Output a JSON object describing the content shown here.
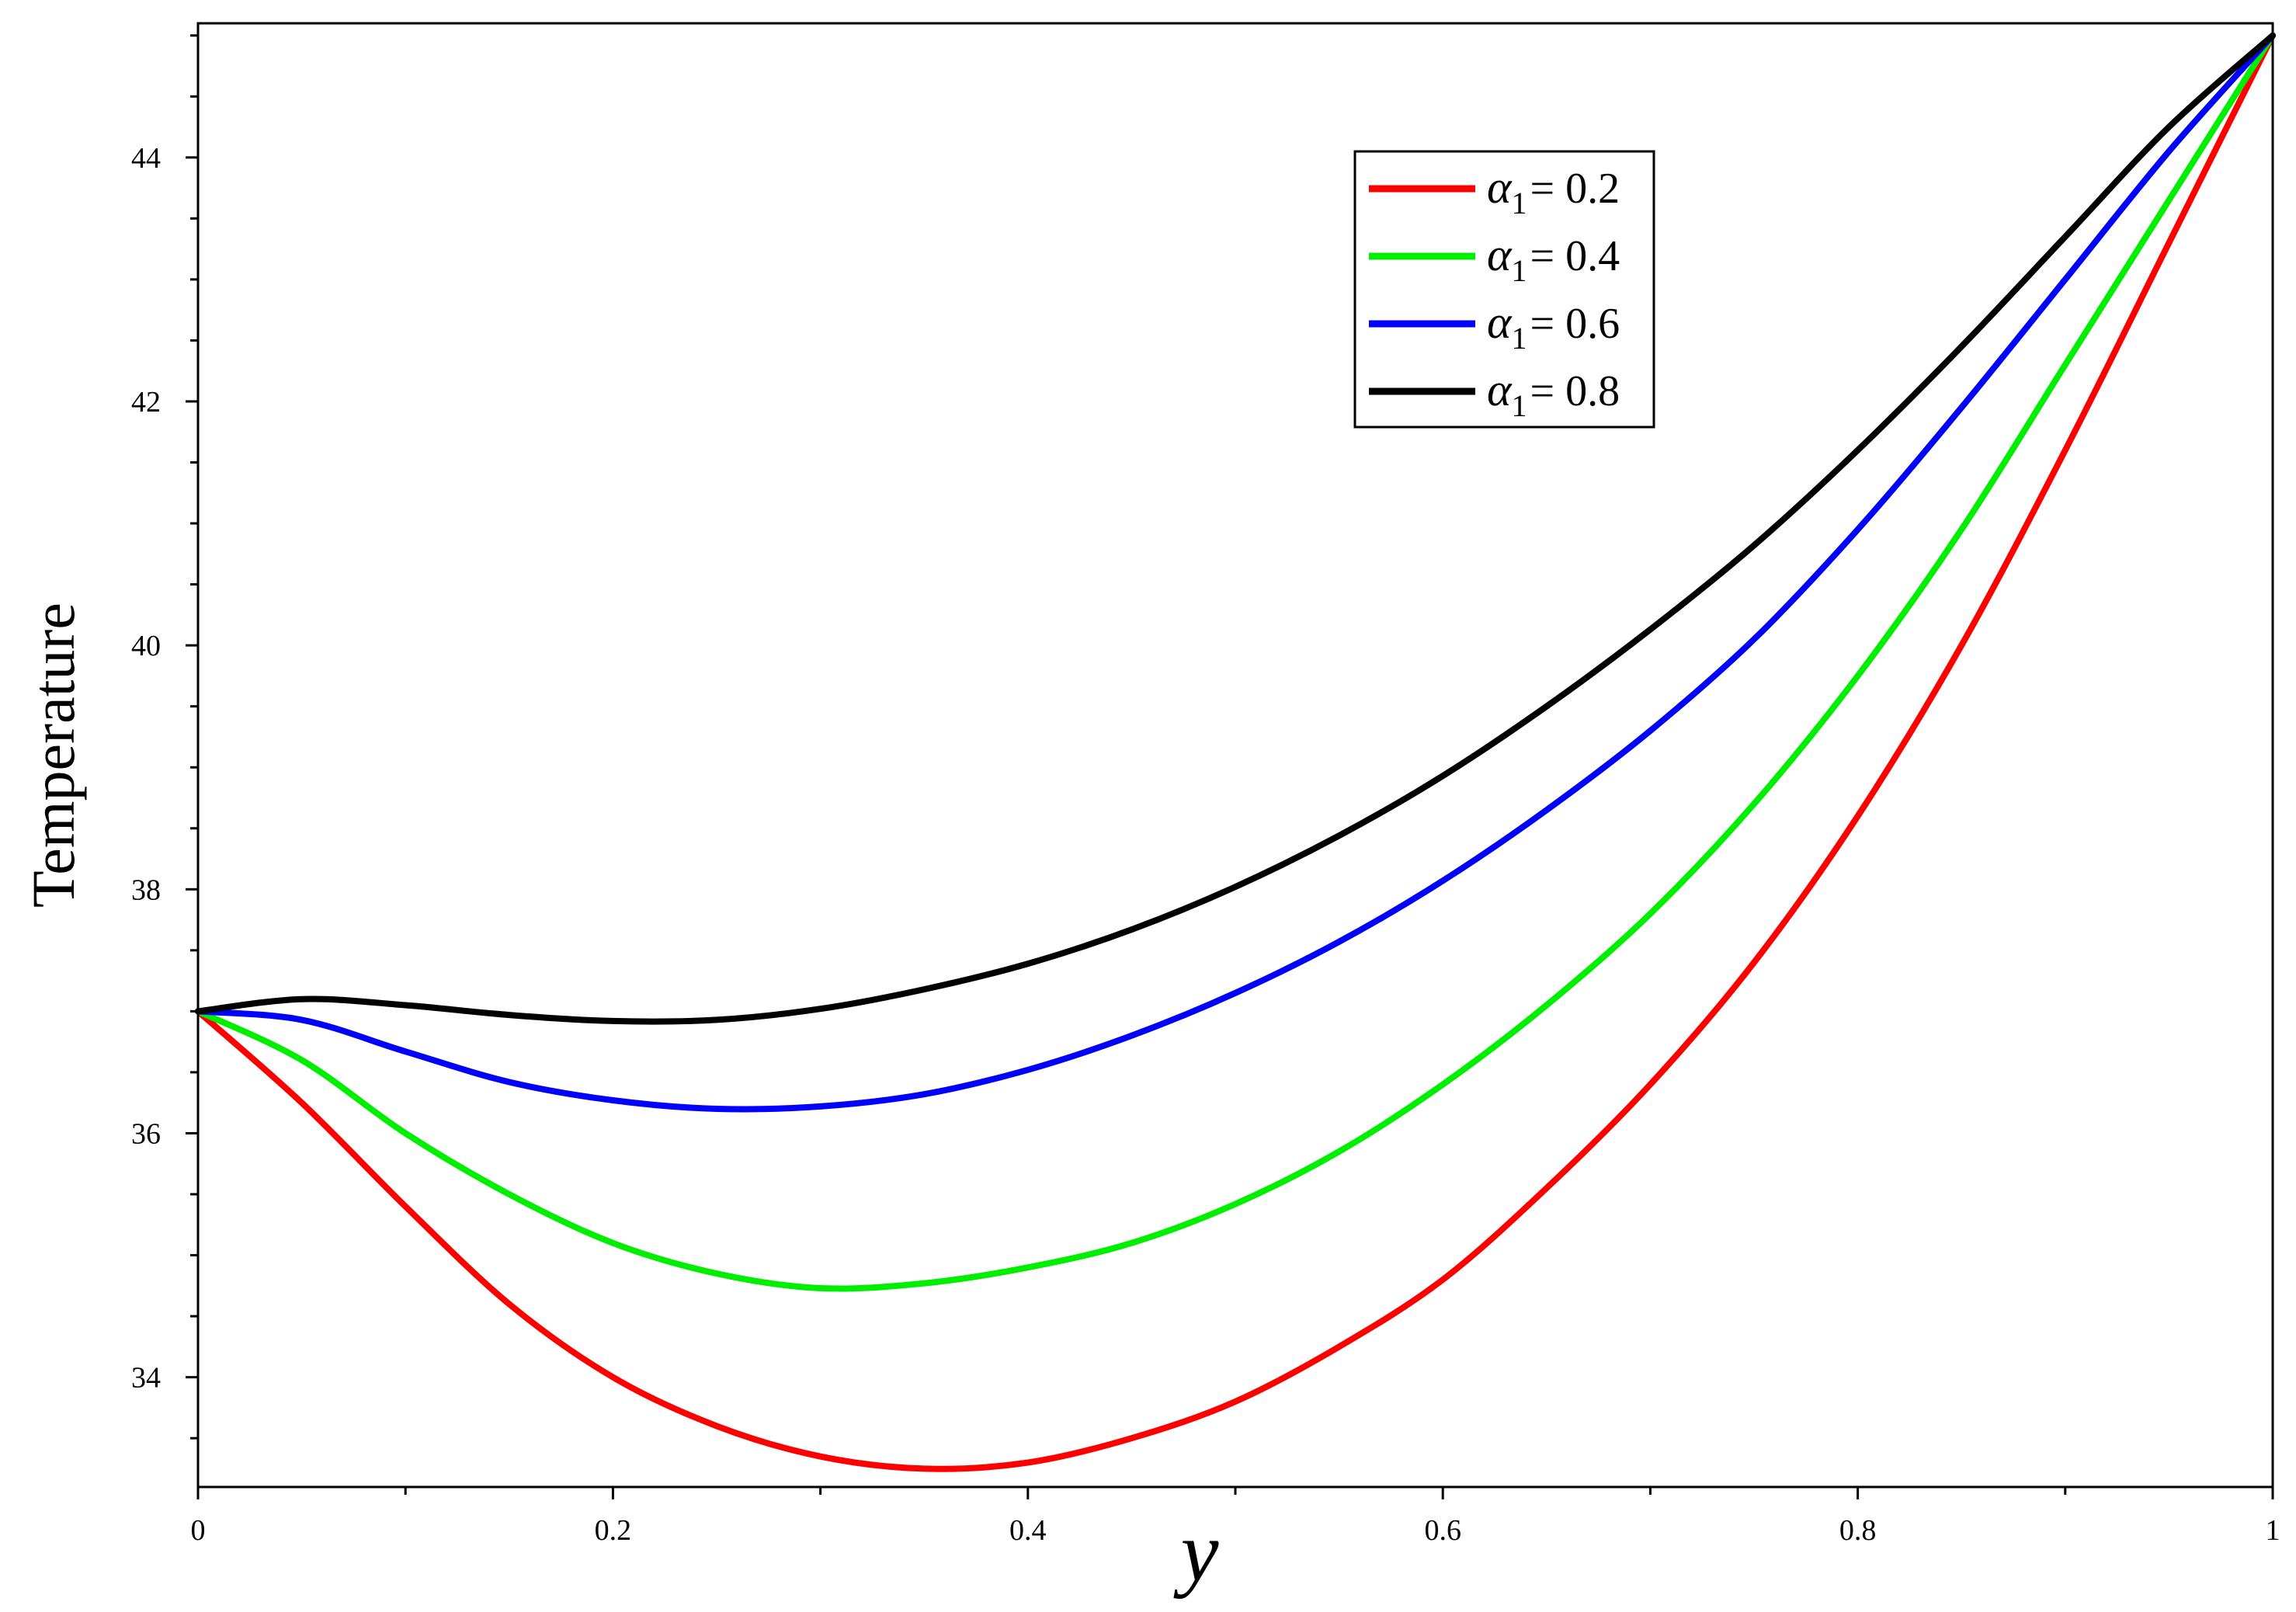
{
  "chart_data": {
    "type": "line",
    "title": "",
    "xlabel": "y",
    "ylabel": "Temperature",
    "xlim": [
      0,
      1
    ],
    "ylim": [
      33.1,
      45.1
    ],
    "grid": false,
    "legend_position": "top-right",
    "x_ticks": [
      "0",
      "0.2",
      "0.4",
      "0.6",
      "0.8",
      "1"
    ],
    "y_ticks": [
      "34",
      "36",
      "38",
      "40",
      "42",
      "44"
    ],
    "x": [
      0,
      0.05,
      0.1,
      0.15,
      0.2,
      0.25,
      0.3,
      0.35,
      0.4,
      0.45,
      0.5,
      0.55,
      0.6,
      0.65,
      0.7,
      0.75,
      0.8,
      0.85,
      0.9,
      0.95,
      1.0
    ],
    "series": [
      {
        "name": "α1 = 0.2",
        "legend_symbol": "α",
        "legend_sub": "1",
        "legend_value": "= 0.2",
        "color": "#ff0000",
        "values": [
          37.0,
          36.25,
          35.4,
          34.6,
          34.0,
          33.6,
          33.35,
          33.25,
          33.3,
          33.5,
          33.8,
          34.25,
          34.8,
          35.55,
          36.4,
          37.4,
          38.6,
          40.0,
          41.6,
          43.3,
          45.0
        ]
      },
      {
        "name": "α1 = 0.4",
        "legend_symbol": "α",
        "legend_sub": "1",
        "legend_value": "= 0.4",
        "color": "#00ee00",
        "values": [
          37.0,
          36.6,
          36.0,
          35.5,
          35.1,
          34.85,
          34.73,
          34.77,
          34.9,
          35.1,
          35.42,
          35.85,
          36.4,
          37.05,
          37.8,
          38.7,
          39.75,
          40.95,
          42.3,
          43.65,
          45.0
        ]
      },
      {
        "name": "α1 = 0.6",
        "legend_symbol": "α",
        "legend_sub": "1",
        "legend_value": "= 0.6",
        "color": "#0000ff",
        "values": [
          37.0,
          36.93,
          36.67,
          36.42,
          36.27,
          36.2,
          36.22,
          36.32,
          36.52,
          36.8,
          37.15,
          37.57,
          38.07,
          38.65,
          39.3,
          40.05,
          40.95,
          41.95,
          43.0,
          44.05,
          45.0
        ]
      },
      {
        "name": "α1 = 0.8",
        "legend_symbol": "α",
        "legend_sub": "1",
        "legend_value": "= 0.8",
        "color": "#000000",
        "values": [
          37.0,
          37.1,
          37.05,
          36.97,
          36.92,
          36.93,
          37.02,
          37.18,
          37.39,
          37.67,
          38.02,
          38.44,
          38.93,
          39.5,
          40.13,
          40.82,
          41.6,
          42.45,
          43.35,
          44.25,
          45.0
        ]
      }
    ]
  }
}
